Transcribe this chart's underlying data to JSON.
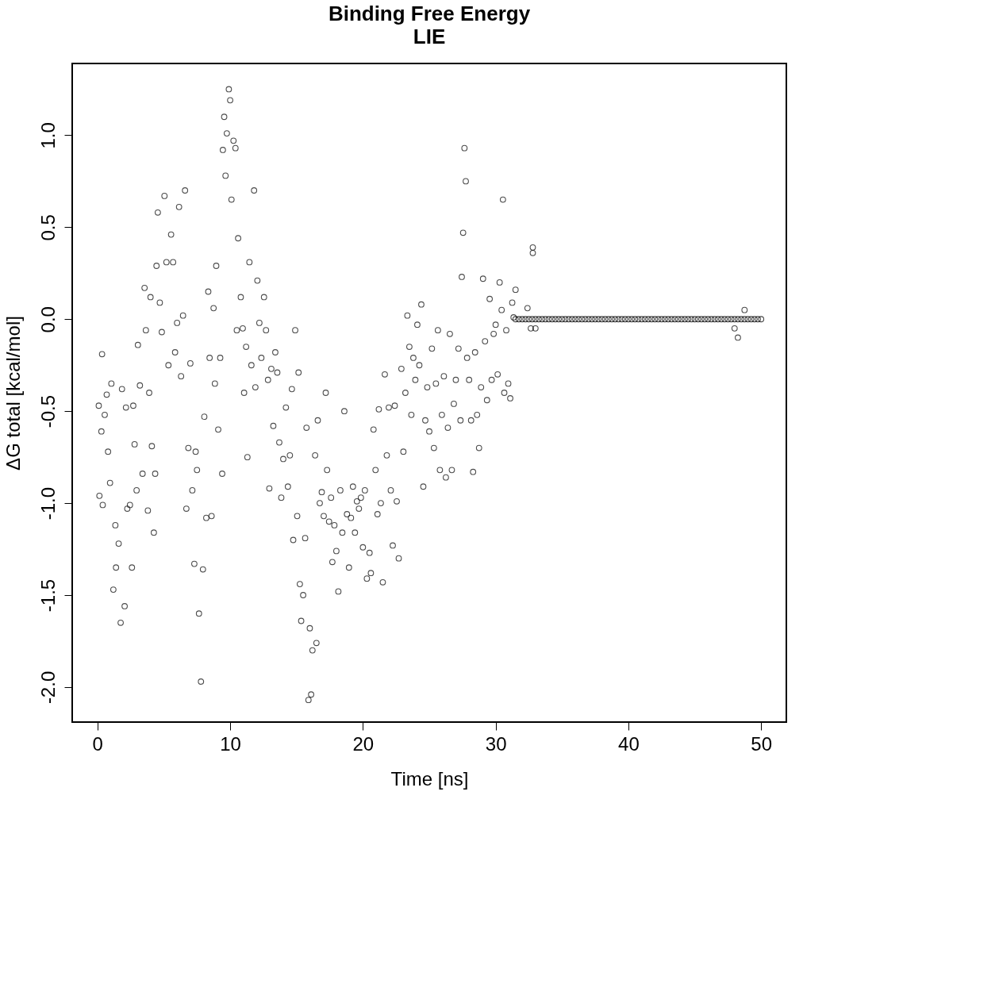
{
  "chart_data": {
    "type": "scatter",
    "title": "Binding Free Energy",
    "subtitle": "LIE",
    "xlabel": "Time [ns]",
    "ylabel": "ΔG total [kcal/mol]",
    "xlim": [
      -1.9,
      51.9
    ],
    "ylim": [
      -2.19,
      1.39
    ],
    "xticks": [
      0,
      10,
      20,
      30,
      40,
      50
    ],
    "yticks": [
      {
        "value": -2,
        "label": "-2.0"
      },
      {
        "value": -1.5,
        "label": "-1.5"
      },
      {
        "value": -1,
        "label": "-1.0"
      },
      {
        "value": -0.5,
        "label": "-0.5"
      },
      {
        "value": 0,
        "label": "0.0"
      },
      {
        "value": 0.5,
        "label": "0.5"
      },
      {
        "value": 1,
        "label": "1.0"
      }
    ],
    "grid": false,
    "marker": "circle",
    "series": [
      {
        "color": "#000000",
        "x": [
          0.1,
          0.15,
          0.3,
          0.35,
          0.4,
          0.55,
          0.7,
          0.8,
          0.95,
          1.05,
          1.2,
          1.35,
          1.4,
          1.6,
          1.75,
          1.85,
          2.05,
          2.15,
          2.25,
          2.45,
          2.6,
          2.7,
          2.8,
          2.95,
          3.05,
          3.2,
          3.4,
          3.55,
          3.65,
          3.8,
          3.9,
          4.0,
          4.1,
          4.25,
          4.35,
          4.45,
          4.55,
          4.7,
          4.85,
          5.05,
          5.2,
          5.35,
          5.55,
          5.7,
          5.85,
          6.0,
          6.15,
          6.3,
          6.45,
          6.6,
          6.7,
          6.85,
          7.0,
          7.15,
          7.3,
          7.4,
          7.5,
          7.65,
          7.8,
          7.95,
          8.05,
          8.2,
          8.35,
          8.45,
          8.6,
          8.75,
          8.85,
          8.95,
          9.1,
          9.25,
          9.4,
          9.45,
          9.55,
          9.65,
          9.75,
          9.9,
          10.0,
          10.1,
          10.25,
          10.4,
          10.5,
          10.6,
          10.8,
          10.95,
          11.05,
          11.2,
          11.3,
          11.45,
          11.6,
          11.8,
          11.9,
          12.05,
          12.2,
          12.35,
          12.55,
          12.7,
          12.85,
          12.95,
          13.1,
          13.25,
          13.4,
          13.55,
          13.7,
          13.85,
          14.0,
          14.2,
          14.35,
          14.5,
          14.65,
          14.75,
          14.9,
          15.05,
          15.15,
          15.25,
          15.35,
          15.5,
          15.65,
          15.75,
          15.9,
          16.0,
          16.1,
          16.2,
          16.4,
          16.5,
          16.6,
          16.75,
          16.9,
          17.05,
          17.2,
          17.3,
          17.45,
          17.6,
          17.7,
          17.85,
          18.0,
          18.15,
          18.3,
          18.45,
          18.6,
          18.8,
          18.95,
          19.1,
          19.25,
          19.4,
          19.55,
          19.7,
          19.85,
          20.0,
          20.15,
          20.3,
          20.5,
          20.6,
          20.8,
          20.95,
          21.1,
          21.2,
          21.35,
          21.5,
          21.65,
          21.8,
          21.95,
          22.1,
          22.25,
          22.4,
          22.55,
          22.7,
          22.9,
          23.05,
          23.2,
          23.35,
          23.5,
          23.65,
          23.8,
          23.95,
          24.1,
          24.25,
          24.4,
          24.55,
          24.7,
          24.85,
          25.0,
          25.2,
          25.35,
          25.5,
          25.65,
          25.8,
          25.95,
          26.1,
          26.25,
          26.4,
          26.55,
          26.7,
          26.85,
          27.0,
          27.2,
          27.35,
          27.45,
          27.55,
          27.65,
          27.75,
          27.85,
          28.0,
          28.15,
          28.3,
          28.45,
          28.6,
          28.75,
          28.9,
          29.05,
          29.2,
          29.35,
          29.55,
          29.7,
          29.85,
          30.0,
          30.15,
          30.3,
          30.45,
          30.55,
          30.65,
          30.8,
          30.95,
          31.1,
          31.25,
          31.35,
          31.5,
          32.4,
          32.65,
          32.8,
          32.8,
          33.0,
          48.0,
          48.25,
          48.75,
          31.5,
          31.75,
          32,
          32.25,
          32.5,
          32.75,
          33,
          33.25,
          33.5,
          33.75,
          34,
          34.25,
          34.5,
          34.75,
          35,
          35.25,
          35.5,
          35.75,
          36,
          36.25,
          36.5,
          36.75,
          37,
          37.25,
          37.5,
          37.75,
          38,
          38.25,
          38.5,
          38.75,
          39,
          39.25,
          39.5,
          39.75,
          40,
          40.25,
          40.5,
          40.75,
          41,
          41.25,
          41.5,
          41.75,
          42,
          42.25,
          42.5,
          42.75,
          43,
          43.25,
          43.5,
          43.75,
          44,
          44.25,
          44.5,
          44.75,
          45,
          45.25,
          45.5,
          45.75,
          46,
          46.25,
          46.5,
          46.75,
          47,
          47.25,
          47.5,
          47.75,
          48,
          48.25,
          48.5,
          48.75,
          49,
          49.25,
          49.5,
          49.75,
          50
        ],
        "values": [
          -0.47,
          -0.96,
          -0.61,
          -0.19,
          -1.01,
          -0.52,
          -0.41,
          -0.72,
          -0.89,
          -0.35,
          -1.47,
          -1.12,
          -1.35,
          -1.22,
          -1.65,
          -0.38,
          -1.56,
          -0.48,
          -1.03,
          -1.01,
          -1.35,
          -0.47,
          -0.68,
          -0.93,
          -0.14,
          -0.36,
          -0.84,
          0.17,
          -0.06,
          -1.04,
          -0.4,
          0.12,
          -0.69,
          -1.16,
          -0.84,
          0.29,
          0.58,
          0.09,
          -0.07,
          0.67,
          0.31,
          -0.25,
          0.46,
          0.31,
          -0.18,
          -0.02,
          0.61,
          -0.31,
          0.02,
          0.7,
          -1.03,
          -0.7,
          -0.24,
          -0.93,
          -1.33,
          -0.72,
          -0.82,
          -1.6,
          -1.97,
          -1.36,
          -0.53,
          -1.08,
          0.15,
          -0.21,
          -1.07,
          0.06,
          -0.35,
          0.29,
          -0.6,
          -0.21,
          -0.84,
          0.92,
          1.1,
          0.78,
          1.01,
          1.25,
          1.19,
          0.65,
          0.97,
          0.93,
          -0.06,
          0.44,
          0.12,
          -0.05,
          -0.4,
          -0.15,
          -0.75,
          0.31,
          -0.25,
          0.7,
          -0.37,
          0.21,
          -0.02,
          -0.21,
          0.12,
          -0.06,
          -0.33,
          -0.92,
          -0.27,
          -0.58,
          -0.18,
          -0.29,
          -0.67,
          -0.97,
          -0.76,
          -0.48,
          -0.91,
          -0.74,
          -0.38,
          -1.2,
          -0.06,
          -1.07,
          -0.29,
          -1.44,
          -1.64,
          -1.5,
          -1.19,
          -0.59,
          -2.07,
          -1.68,
          -2.04,
          -1.8,
          -0.74,
          -1.76,
          -0.55,
          -1.0,
          -0.94,
          -1.07,
          -0.4,
          -0.82,
          -1.1,
          -0.97,
          -1.32,
          -1.12,
          -1.26,
          -1.48,
          -0.93,
          -1.16,
          -0.5,
          -1.06,
          -1.35,
          -1.08,
          -0.91,
          -1.16,
          -0.99,
          -1.03,
          -0.97,
          -1.24,
          -0.93,
          -1.41,
          -1.27,
          -1.38,
          -0.6,
          -0.82,
          -1.06,
          -0.49,
          -1.0,
          -1.43,
          -0.3,
          -0.74,
          -0.48,
          -0.93,
          -1.23,
          -0.47,
          -0.99,
          -1.3,
          -0.27,
          -0.72,
          -0.4,
          0.02,
          -0.15,
          -0.52,
          -0.21,
          -0.33,
          -0.03,
          -0.25,
          0.08,
          -0.91,
          -0.55,
          -0.37,
          -0.61,
          -0.16,
          -0.7,
          -0.35,
          -0.06,
          -0.82,
          -0.52,
          -0.31,
          -0.86,
          -0.59,
          -0.08,
          -0.82,
          -0.46,
          -0.33,
          -0.16,
          -0.55,
          0.23,
          0.47,
          0.93,
          0.75,
          -0.21,
          -0.33,
          -0.55,
          -0.83,
          -0.18,
          -0.52,
          -0.7,
          -0.37,
          0.22,
          -0.12,
          -0.44,
          0.11,
          -0.33,
          -0.08,
          -0.03,
          -0.3,
          0.2,
          0.05,
          0.65,
          -0.4,
          -0.06,
          -0.35,
          -0.43,
          0.09,
          0.01,
          0.16,
          0.06,
          -0.05,
          0.39,
          0.36,
          -0.05,
          -0.05,
          -0.1,
          0.05,
          0,
          0,
          0,
          0,
          0,
          0,
          0,
          0,
          0,
          0,
          0,
          0,
          0,
          0,
          0,
          0,
          0,
          0,
          0,
          0,
          0,
          0,
          0,
          0,
          0,
          0,
          0,
          0,
          0,
          0,
          0,
          0,
          0,
          0,
          0,
          0,
          0,
          0,
          0,
          0,
          0,
          0,
          0,
          0,
          0,
          0,
          0,
          0,
          0,
          0,
          0,
          0,
          0,
          0,
          0,
          0,
          0,
          0,
          0,
          0,
          0,
          0,
          0,
          0,
          0,
          0,
          0,
          0,
          0,
          0,
          0,
          0,
          0,
          0,
          0
        ]
      }
    ]
  }
}
